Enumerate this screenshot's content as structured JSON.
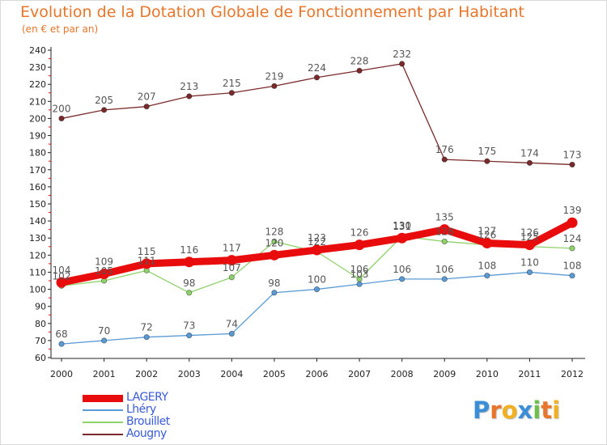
{
  "title": "Evolution de la Dotation Globale de Fonctionnement par Habitant",
  "subtitle": "(en € et par an)",
  "logo": {
    "letters": [
      "P",
      "r",
      "o",
      "x",
      "i",
      "t",
      "i"
    ],
    "colors": [
      "#3a8fd8",
      "#e8752a",
      "#f0b020",
      "#3a8fd8",
      "#6cc04a",
      "#e8752a",
      "#f0b020"
    ]
  },
  "chart_data": {
    "type": "line",
    "x": [
      "2000",
      "2001",
      "2002",
      "2003",
      "2004",
      "2005",
      "2006",
      "2007",
      "2008",
      "2009",
      "2010",
      "2011",
      "2012"
    ],
    "ylim": [
      60,
      240
    ],
    "yticks": [
      "60",
      "70",
      "80",
      "90",
      "100",
      "110",
      "120",
      "130",
      "140",
      "150",
      "160",
      "170",
      "180",
      "190",
      "200",
      "210",
      "220",
      "230",
      "240"
    ],
    "grid": false,
    "legend_position": "bottom-left",
    "series": [
      {
        "name": "Aougny",
        "color": "#7a2a2a",
        "values": [
          200,
          205,
          207,
          213,
          215,
          219,
          224,
          228,
          232,
          176,
          175,
          174,
          173
        ],
        "labels": [
          "200",
          "205",
          "207",
          "213",
          "215",
          "219",
          "224",
          "228",
          "232",
          "176",
          "175",
          "174",
          "173"
        ]
      },
      {
        "name": "Lhéry",
        "color": "#5b9bd5",
        "values": [
          68,
          70,
          72,
          73,
          74,
          98,
          100,
          103,
          106,
          106,
          108,
          110,
          108
        ],
        "labels": [
          "68",
          "70",
          "72",
          "73",
          "74",
          "98",
          "100",
          "103",
          "106",
          "106",
          "108",
          "110",
          "108"
        ]
      },
      {
        "name": "Brouillet",
        "color": "#8fd16a",
        "values": [
          102,
          105,
          111,
          98,
          107,
          128,
          122,
          106,
          131,
          128,
          126,
          125,
          124
        ],
        "labels": [
          "102",
          "105",
          "111",
          "98",
          "107",
          "128",
          "122",
          "106",
          "131",
          "128",
          "126",
          "125",
          "124"
        ]
      },
      {
        "name": "LAGERY",
        "color": "#e80c0c",
        "values": [
          104,
          109,
          115,
          116,
          117,
          120,
          123,
          126,
          130,
          135,
          127,
          126,
          139
        ],
        "labels": [
          "104",
          "109",
          "115",
          "116",
          "117",
          "120",
          "123",
          "126",
          "130",
          "135",
          "127",
          "126",
          "139"
        ]
      }
    ],
    "legend": [
      {
        "name": "LAGERY",
        "color": "#e80c0c",
        "text_color": "#3a5bd9"
      },
      {
        "name": "Lhéry",
        "color": "#5b9bd5",
        "text_color": "#3a5bd9"
      },
      {
        "name": "Brouillet",
        "color": "#8fd16a",
        "text_color": "#3a5bd9"
      },
      {
        "name": "Aougny",
        "color": "#7a2a2a",
        "text_color": "#3a5bd9"
      }
    ]
  }
}
